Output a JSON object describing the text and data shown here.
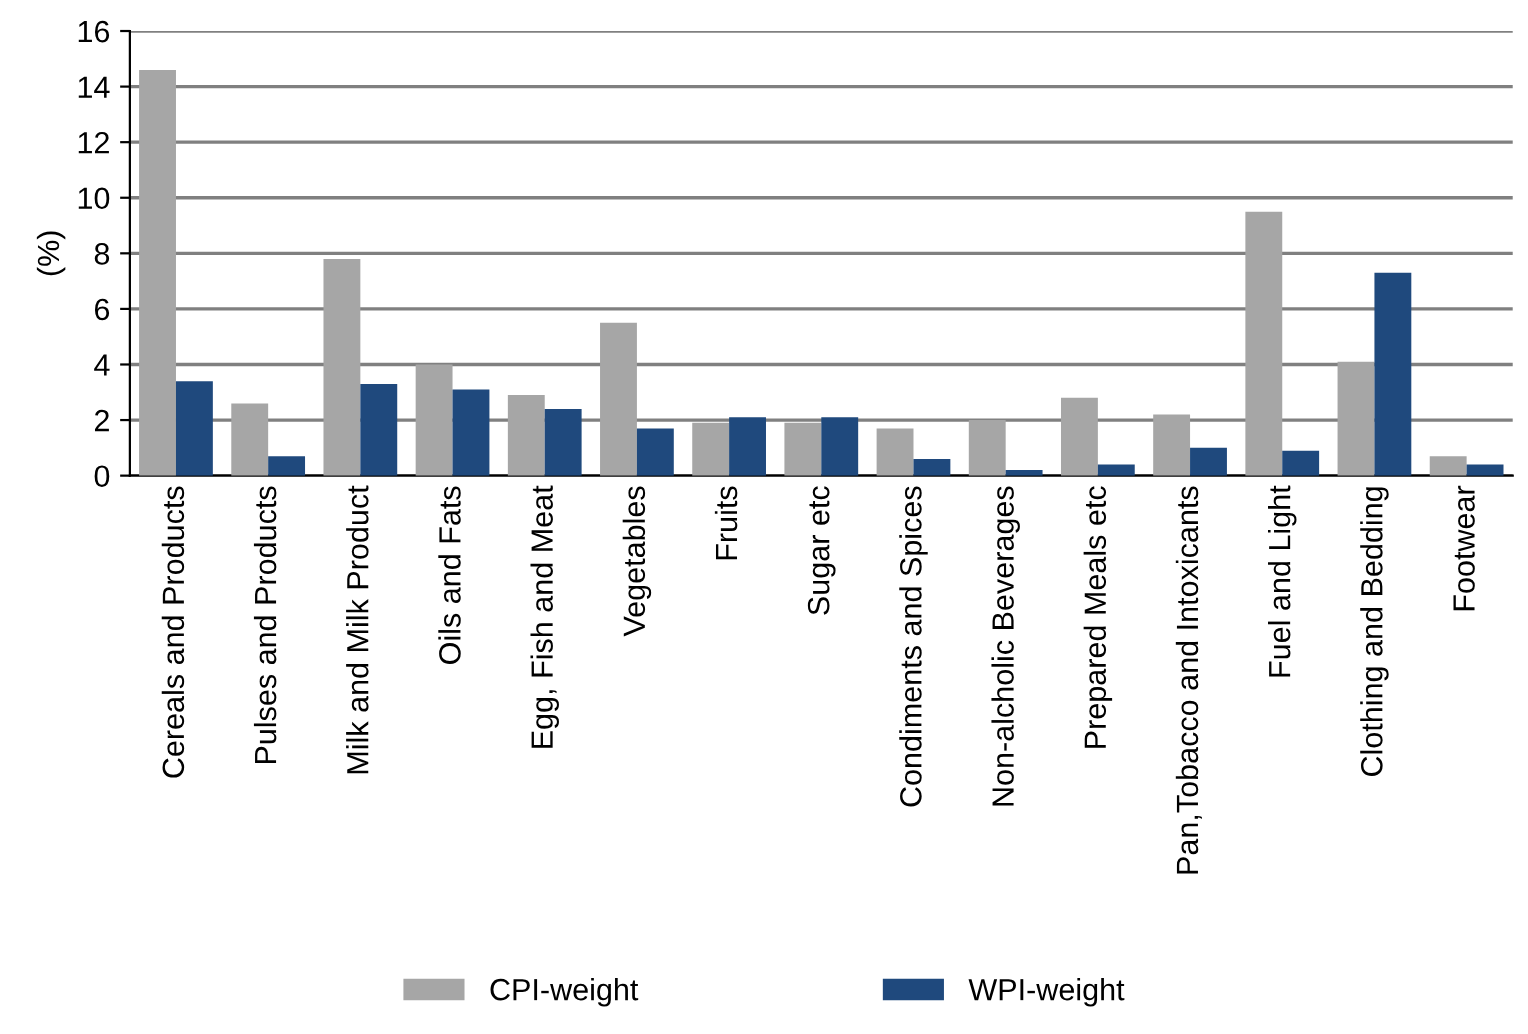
{
  "chart_data": {
    "type": "bar",
    "ylabel": "(%)",
    "categories": [
      "Cereals and Products",
      "Pulses and Products",
      "Milk and Milk Product",
      "Oils and Fats",
      "Egg, Fish and Meat",
      "Vegetables",
      "Fruits",
      "Sugar etc",
      "Condiments and Spices",
      "Non-alcholic Beverages",
      "Prepared Meals etc",
      "Pan,Tobacco and Intoxicants",
      "Fuel and Light",
      "Clothing and Bedding",
      "Footwear"
    ],
    "series": [
      {
        "name": "CPI-weight",
        "color": "#a6a6a6",
        "values": [
          14.6,
          2.6,
          7.8,
          4.0,
          2.9,
          5.5,
          1.9,
          1.9,
          1.7,
          2.0,
          2.8,
          2.2,
          9.5,
          4.1,
          0.7
        ]
      },
      {
        "name": "WPI-weight",
        "color": "#1f497d",
        "values": [
          3.4,
          0.7,
          3.3,
          3.1,
          2.4,
          1.7,
          2.1,
          2.1,
          0.6,
          0.2,
          0.4,
          1.0,
          0.9,
          7.3,
          0.4
        ]
      }
    ],
    "ylim": [
      0,
      16
    ],
    "yticks": [
      0,
      2,
      4,
      6,
      8,
      10,
      12,
      14,
      16
    ],
    "grid": "y",
    "legend": "bottom"
  }
}
